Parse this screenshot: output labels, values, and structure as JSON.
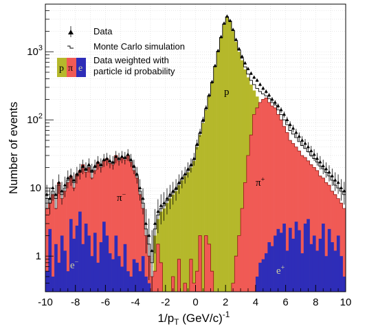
{
  "chart_data": {
    "type": "histogram",
    "title": "",
    "xlabel": "1/p_T (GeV/c)^-1",
    "xlabel_parts": {
      "main": "1/p",
      "sub": "T",
      "unit": " (GeV/c)",
      "sup": "-1"
    },
    "ylabel": "Number of events",
    "xlim": [
      -10,
      10
    ],
    "ylim": [
      0.3,
      5000
    ],
    "yscale": "log",
    "grid": true,
    "legend_position": "top-left",
    "xticks": [
      -10,
      -8,
      -6,
      -4,
      -2,
      0,
      2,
      4,
      6,
      8,
      10
    ],
    "yticks": [
      {
        "value": 1,
        "label": "1"
      },
      {
        "value": 10,
        "label": "10"
      },
      {
        "value": 100,
        "label": "10",
        "sup": "2"
      },
      {
        "value": 1000,
        "label": "10",
        "sup": "3"
      }
    ],
    "legend": {
      "data": "Data",
      "mc": "Monte Carlo simulation",
      "weighted_line1": "Data weighted with",
      "weighted_line2": "particle id probability",
      "p_letter": "p",
      "pi_letter": "π",
      "e_letter": "e"
    },
    "region_labels": {
      "p": "p",
      "pi_minus": "π",
      "pi_minus_sup": "−",
      "pi_plus": "π",
      "pi_plus_sup": "+",
      "e_minus": "e",
      "e_minus_sup": "−",
      "e_plus": "e",
      "e_plus_sup": "+"
    },
    "colors": {
      "proton": "#b5b82b",
      "pion": "#f05a55",
      "electron": "#2e2db8",
      "data": "#000000",
      "mc": "#000000"
    },
    "bin_width": 0.2,
    "x": [
      -10.0,
      -9.8,
      -9.6,
      -9.4,
      -9.2,
      -9.0,
      -8.8,
      -8.6,
      -8.4,
      -8.2,
      -8.0,
      -7.8,
      -7.6,
      -7.4,
      -7.2,
      -7.0,
      -6.8,
      -6.6,
      -6.4,
      -6.2,
      -6.0,
      -5.8,
      -5.6,
      -5.4,
      -5.2,
      -5.0,
      -4.8,
      -4.6,
      -4.4,
      -4.2,
      -4.0,
      -3.8,
      -3.6,
      -3.4,
      -3.2,
      -3.0,
      -2.8,
      -2.6,
      -2.4,
      -2.2,
      -2.0,
      -1.8,
      -1.6,
      -1.4,
      -1.2,
      -1.0,
      -0.8,
      -0.6,
      -0.4,
      -0.2,
      0.0,
      0.2,
      0.4,
      0.6,
      0.8,
      1.0,
      1.2,
      1.4,
      1.6,
      1.8,
      2.0,
      2.2,
      2.4,
      2.6,
      2.8,
      3.0,
      3.2,
      3.4,
      3.6,
      3.8,
      4.0,
      4.2,
      4.4,
      4.6,
      4.8,
      5.0,
      5.2,
      5.4,
      5.6,
      5.8,
      6.0,
      6.2,
      6.4,
      6.6,
      6.8,
      7.0,
      7.2,
      7.4,
      7.6,
      7.8,
      8.0,
      8.2,
      8.4,
      8.6,
      8.8,
      9.0,
      9.2,
      9.4,
      9.6,
      9.8
    ],
    "series": [
      {
        "name": "e",
        "values": [
          0.6,
          2.5,
          0.5,
          1.5,
          0.8,
          2.0,
          1.2,
          0.6,
          3.5,
          1.8,
          2.8,
          4.5,
          1.5,
          3.0,
          2.0,
          1.0,
          2.2,
          0.8,
          1.6,
          3.2,
          2.0,
          1.1,
          0.9,
          2.0,
          1.0,
          0.7,
          1.5,
          0.6,
          0.5,
          0.9,
          0.8,
          0.6,
          1.0,
          0.5,
          0.4,
          0.3,
          0.3,
          0.3,
          0.3,
          0.3,
          0.3,
          0.3,
          0.3,
          0.3,
          0.3,
          0.3,
          0.3,
          0.3,
          0.3,
          0.3,
          0.3,
          0.3,
          0.3,
          0.3,
          0.3,
          0.3,
          0.3,
          0.3,
          0.3,
          0.3,
          0.3,
          0.3,
          0.3,
          0.3,
          0.3,
          0.3,
          0.3,
          0.3,
          0.3,
          0.3,
          0.5,
          0.8,
          0.9,
          1.1,
          1.6,
          1.4,
          2.0,
          2.5,
          2.2,
          3.0,
          1.2,
          2.6,
          1.8,
          3.2,
          2.4,
          1.1,
          3.0,
          3.5,
          1.5,
          2.0,
          1.2,
          1.8,
          3.0,
          1.0,
          2.5,
          1.6,
          1.2,
          2.0,
          1.0,
          0.5
        ]
      },
      {
        "name": "π",
        "values": [
          5,
          6,
          8,
          5,
          12,
          7,
          9,
          12,
          15,
          10,
          16,
          18,
          22,
          17,
          20,
          14,
          18,
          24,
          20,
          25,
          27,
          23,
          22,
          30,
          25,
          28,
          26,
          30,
          24,
          18,
          14,
          8,
          5,
          2.0,
          1.0,
          0.5,
          0.6,
          1.5,
          0.8,
          0.3,
          0.3,
          0.3,
          0.5,
          0.3,
          0.9,
          0.3,
          0.4,
          0.3,
          0.9,
          0.4,
          0.6,
          2.0,
          0.3,
          2.0,
          1.5,
          0.6,
          0.3,
          0.3,
          0.3,
          0.3,
          0.3,
          0.3,
          0.4,
          1.0,
          2.0,
          5,
          12,
          30,
          60,
          120,
          150,
          180,
          200,
          210,
          180,
          160,
          150,
          120,
          100,
          80,
          65,
          50,
          45,
          40,
          35,
          30,
          28,
          25,
          22,
          20,
          18,
          15,
          14,
          12,
          11,
          9,
          8,
          7,
          6,
          5
        ]
      },
      {
        "name": "p",
        "values": [
          0.3,
          0.3,
          0.3,
          0.3,
          0.3,
          0.3,
          0.3,
          0.3,
          0.3,
          0.3,
          0.3,
          0.3,
          0.3,
          0.3,
          0.3,
          0.3,
          0.3,
          0.3,
          0.3,
          0.3,
          0.3,
          0.3,
          0.3,
          0.3,
          0.3,
          0.3,
          0.3,
          0.3,
          0.3,
          0.3,
          0.3,
          0.3,
          0.3,
          0.3,
          0.3,
          0.3,
          2.0,
          3.5,
          4.5,
          5.0,
          6.0,
          7.0,
          8.0,
          9.0,
          11.0,
          13.0,
          15.0,
          17.0,
          20.0,
          25.0,
          40.0,
          60.0,
          90.0,
          140.0,
          220.0,
          350.0,
          600.0,
          1000.0,
          1600.0,
          2500.0,
          3200.0,
          2800.0,
          2000.0,
          1400.0,
          1000.0,
          750.0,
          550.0,
          420.0,
          330.0,
          270.0,
          220.0,
          0.3,
          0.3,
          0.3,
          0.3,
          0.3,
          0.3,
          0.3,
          0.3,
          0.3,
          0.3,
          0.3,
          0.3,
          0.3,
          0.3,
          0.3,
          0.3,
          0.3,
          0.3,
          0.3,
          0.3,
          0.3,
          0.3,
          0.3,
          0.3,
          0.3,
          0.3,
          0.3,
          0.3,
          0.3
        ]
      },
      {
        "name": "Monte Carlo simulation",
        "values": [
          7,
          6,
          9,
          7,
          11,
          8,
          10,
          13,
          14,
          12,
          15,
          17,
          20,
          18,
          21,
          17,
          20,
          23,
          21,
          25,
          26,
          24,
          23,
          28,
          26,
          28,
          27,
          30,
          25,
          20,
          15,
          9,
          6,
          2.5,
          1.5,
          0.8,
          2.5,
          4.0,
          5.0,
          5.5,
          6.5,
          7.5,
          8.5,
          9.5,
          11.5,
          13.5,
          15.5,
          18.0,
          21.0,
          26.0,
          42.0,
          63.0,
          95.0,
          145.0,
          225.0,
          355.0,
          610.0,
          1020.0,
          1620.0,
          2550.0,
          3250.0,
          2820.0,
          2050.0,
          1450.0,
          1050.0,
          800.0,
          600.0,
          470.0,
          380.0,
          330.0,
          290.0,
          260.0,
          240.0,
          225.0,
          205.0,
          180.0,
          165.0,
          140.0,
          120.0,
          100.0,
          85.0,
          70.0,
          62.0,
          55.0,
          48.0,
          42.0,
          38.0,
          34.0,
          30.0,
          27.0,
          24.0,
          21.0,
          19.0,
          17.0,
          15.0,
          13.0,
          11.0,
          10.0,
          9.0,
          8.0
        ]
      },
      {
        "name": "Data",
        "values": [
          8,
          7,
          10,
          8,
          12,
          9,
          11,
          14,
          15,
          13,
          16,
          18,
          21,
          19,
          22,
          18,
          21,
          24,
          22,
          26,
          27,
          25,
          24,
          29,
          27,
          29,
          28,
          31,
          26,
          21,
          16,
          10,
          7,
          3.0,
          2.0,
          1.2,
          3.0,
          4.5,
          5.5,
          6.0,
          7.0,
          8.0,
          9.0,
          10.0,
          12.0,
          14.0,
          16.0,
          19.0,
          22.0,
          27.0,
          44.0,
          65.0,
          100.0,
          150.0,
          230.0,
          360.0,
          620.0,
          1030.0,
          1650.0,
          2600.0,
          3300.0,
          2850.0,
          2100.0,
          1500.0,
          1100.0,
          850.0,
          680.0,
          560.0,
          480.0,
          420.0,
          380.0,
          330.0,
          290.0,
          260.0,
          230.0,
          200.0,
          180.0,
          160.0,
          140.0,
          120.0,
          100.0,
          85.0,
          75.0,
          65.0,
          57.0,
          50.0,
          45.0,
          40.0,
          35.0,
          31.0,
          27.0,
          24.0,
          21.0,
          19.0,
          17.0,
          15.0,
          13.0,
          12.0,
          10.0,
          9.0
        ]
      }
    ]
  }
}
